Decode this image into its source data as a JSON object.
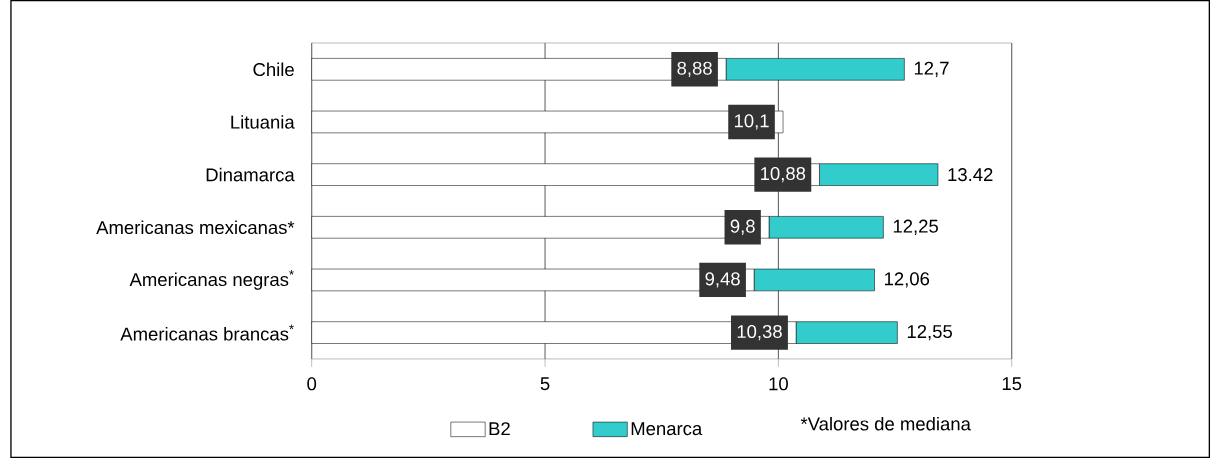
{
  "chart_data": {
    "type": "bar",
    "orientation": "horizontal",
    "stacked": true,
    "categories": [
      "Chile",
      "Lituania",
      "Dinamarca",
      "Americanas mexicanas*",
      "Americanas negras$^{*}$",
      "Americanas brancas$^{*}$"
    ],
    "series": [
      {
        "name": "B2",
        "color": "#ffffff",
        "values": [
          8.88,
          10.1,
          10.88,
          9.8,
          9.48,
          10.38
        ],
        "value_labels": [
          "8,88",
          "10,1",
          "10,88",
          "9,8",
          "9,48",
          "10,38"
        ]
      },
      {
        "name": "Menarca",
        "color": "#33cccc",
        "values": [
          3.82,
          null,
          2.54,
          2.45,
          2.58,
          2.17
        ]
      }
    ],
    "totals": [
      "12,7",
      null,
      "13.42",
      "12,25",
      "12,06",
      "12,55"
    ],
    "xlim": [
      0,
      15
    ],
    "xticks": [
      0,
      5,
      10,
      15
    ],
    "grid": "x",
    "legend": "bottom",
    "annotations": [
      "*Valores de mediana"
    ]
  }
}
